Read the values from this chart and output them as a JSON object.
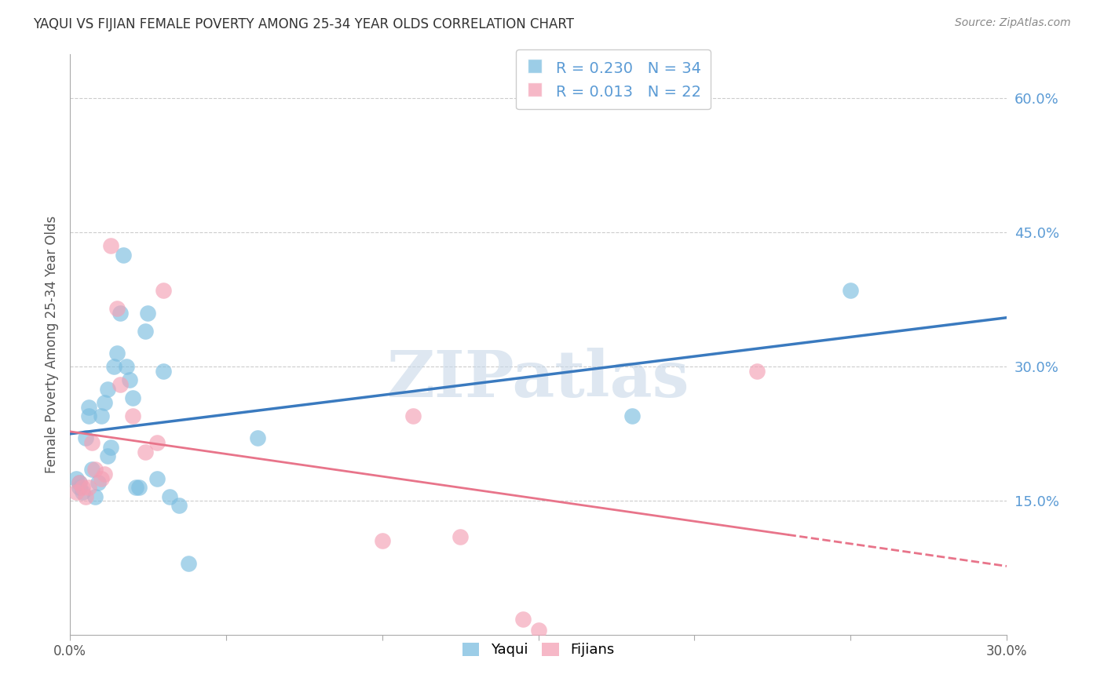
{
  "title": "YAQUI VS FIJIAN FEMALE POVERTY AMONG 25-34 YEAR OLDS CORRELATION CHART",
  "source": "Source: ZipAtlas.com",
  "ylabel": "Female Poverty Among 25-34 Year Olds",
  "xlim": [
    0.0,
    0.3
  ],
  "ylim": [
    0.0,
    0.65
  ],
  "x_ticks": [
    0.0,
    0.05,
    0.1,
    0.15,
    0.2,
    0.25,
    0.3
  ],
  "x_tick_labels_show": [
    "0.0%",
    "",
    "",
    "",
    "",
    "",
    "30.0%"
  ],
  "y_ticks_right": [
    0.15,
    0.3,
    0.45,
    0.6
  ],
  "y_tick_labels_right": [
    "15.0%",
    "30.0%",
    "45.0%",
    "60.0%"
  ],
  "yaqui_R": 0.23,
  "yaqui_N": 34,
  "fijian_R": 0.013,
  "fijian_N": 22,
  "yaqui_color": "#7bbde0",
  "fijian_color": "#f4a0b5",
  "yaqui_line_color": "#3a7abf",
  "fijian_line_color": "#e8748a",
  "watermark_text": "ZIPatlas",
  "watermark_color": "#c8d8e8",
  "background_color": "#ffffff",
  "grid_color": "#cccccc",
  "right_axis_color": "#5b9bd5",
  "legend_R_color": "#1a7abf",
  "legend_N_color": "#cc0000",
  "yaqui_x": [
    0.002,
    0.003,
    0.003,
    0.004,
    0.005,
    0.006,
    0.006,
    0.007,
    0.008,
    0.009,
    0.01,
    0.011,
    0.012,
    0.012,
    0.013,
    0.014,
    0.015,
    0.016,
    0.017,
    0.018,
    0.019,
    0.02,
    0.021,
    0.022,
    0.024,
    0.025,
    0.028,
    0.03,
    0.032,
    0.035,
    0.038,
    0.06,
    0.18,
    0.25
  ],
  "yaqui_y": [
    0.175,
    0.17,
    0.165,
    0.16,
    0.22,
    0.255,
    0.245,
    0.185,
    0.155,
    0.17,
    0.245,
    0.26,
    0.275,
    0.2,
    0.21,
    0.3,
    0.315,
    0.36,
    0.425,
    0.3,
    0.285,
    0.265,
    0.165,
    0.165,
    0.34,
    0.36,
    0.175,
    0.295,
    0.155,
    0.145,
    0.08,
    0.22,
    0.245,
    0.385
  ],
  "fijian_x": [
    0.002,
    0.003,
    0.004,
    0.005,
    0.006,
    0.007,
    0.008,
    0.01,
    0.011,
    0.013,
    0.015,
    0.016,
    0.02,
    0.024,
    0.028,
    0.03,
    0.1,
    0.11,
    0.125,
    0.145,
    0.15,
    0.22
  ],
  "fijian_y": [
    0.16,
    0.17,
    0.165,
    0.155,
    0.165,
    0.215,
    0.185,
    0.175,
    0.18,
    0.435,
    0.365,
    0.28,
    0.245,
    0.205,
    0.215,
    0.385,
    0.105,
    0.245,
    0.11,
    0.018,
    0.005,
    0.295
  ]
}
